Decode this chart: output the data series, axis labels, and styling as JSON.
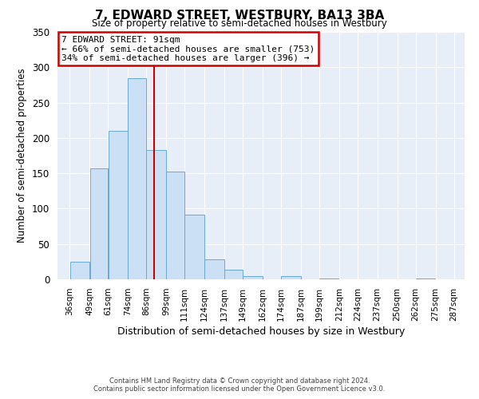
{
  "title": "7, EDWARD STREET, WESTBURY, BA13 3BA",
  "subtitle": "Size of property relative to semi-detached houses in Westbury",
  "xlabel": "Distribution of semi-detached houses by size in Westbury",
  "ylabel": "Number of semi-detached properties",
  "bar_left_edges": [
    36,
    49,
    61,
    74,
    86,
    99,
    111,
    124,
    137,
    149,
    162,
    174,
    187,
    199,
    212,
    224,
    237,
    250,
    262,
    275
  ],
  "bar_widths": [
    13,
    12,
    13,
    12,
    13,
    12,
    13,
    13,
    12,
    13,
    12,
    13,
    12,
    13,
    12,
    13,
    13,
    12,
    13,
    12
  ],
  "bar_heights": [
    25,
    157,
    210,
    285,
    183,
    152,
    91,
    28,
    14,
    5,
    0,
    4,
    0,
    1,
    0,
    0,
    0,
    0,
    1,
    0
  ],
  "tick_labels": [
    "36sqm",
    "49sqm",
    "61sqm",
    "74sqm",
    "86sqm",
    "99sqm",
    "111sqm",
    "124sqm",
    "137sqm",
    "149sqm",
    "162sqm",
    "174sqm",
    "187sqm",
    "199sqm",
    "212sqm",
    "224sqm",
    "237sqm",
    "250sqm",
    "262sqm",
    "275sqm",
    "287sqm"
  ],
  "tick_positions": [
    36,
    49,
    61,
    74,
    86,
    99,
    111,
    124,
    137,
    149,
    162,
    174,
    187,
    199,
    212,
    224,
    237,
    250,
    262,
    275,
    287
  ],
  "bar_color": "#cce0f5",
  "bar_edge_color": "#6aaad4",
  "property_line_x": 91,
  "property_line_color": "#cc0000",
  "annotation_title": "7 EDWARD STREET: 91sqm",
  "annotation_line1": "← 66% of semi-detached houses are smaller (753)",
  "annotation_line2": "34% of semi-detached houses are larger (396) →",
  "annotation_box_color": "#ffffff",
  "annotation_box_edge": "#cc0000",
  "ylim": [
    0,
    350
  ],
  "yticks": [
    0,
    50,
    100,
    150,
    200,
    250,
    300,
    350
  ],
  "xlim_left": 28,
  "xlim_right": 294,
  "footer1": "Contains HM Land Registry data © Crown copyright and database right 2024.",
  "footer2": "Contains public sector information licensed under the Open Government Licence v3.0.",
  "bg_color": "#ffffff",
  "plot_bg_color": "#e8eef8",
  "grid_color": "#ffffff"
}
